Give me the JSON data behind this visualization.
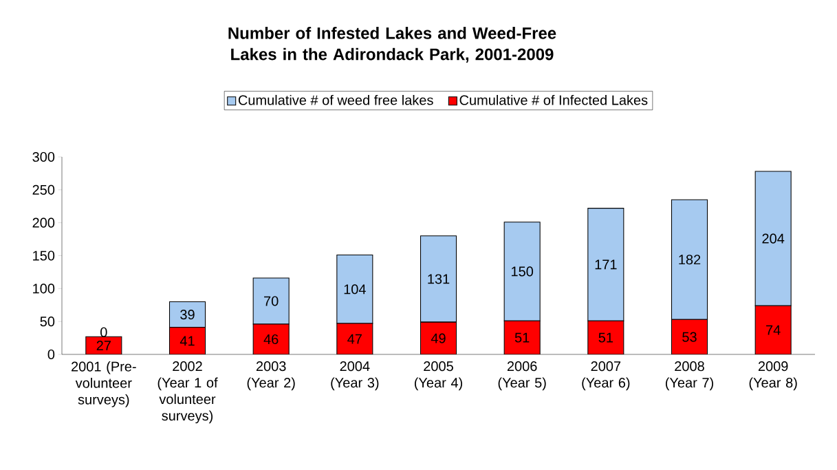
{
  "chart_data": {
    "type": "bar",
    "stacked": true,
    "title": "Number of Infested Lakes and Weed-Free Lakes in the Adirondack Park, 2001-2009",
    "categories": [
      "2001 (Pre-volunteer surveys)",
      "2002 (Year 1 of volunteer surveys)",
      "2003 (Year 2)",
      "2004 (Year 3)",
      "2005 (Year 4)",
      "2006 (Year 5)",
      "2007 (Year 6)",
      "2008 (Year 7)",
      "2009 (Year 8)"
    ],
    "series": [
      {
        "name": "Cumulative # of Infected Lakes",
        "color": "#ff0000",
        "values": [
          27,
          41,
          46,
          47,
          49,
          51,
          51,
          53,
          74
        ]
      },
      {
        "name": "Cumulative # of weed free lakes",
        "color": "#a6caf0",
        "values": [
          0,
          39,
          70,
          104,
          131,
          150,
          171,
          182,
          204
        ]
      }
    ],
    "ylim": [
      0,
      300
    ],
    "yticks": [
      0,
      50,
      100,
      150,
      200,
      250,
      300
    ],
    "grid": false,
    "legend": "top",
    "data_labels": true
  }
}
